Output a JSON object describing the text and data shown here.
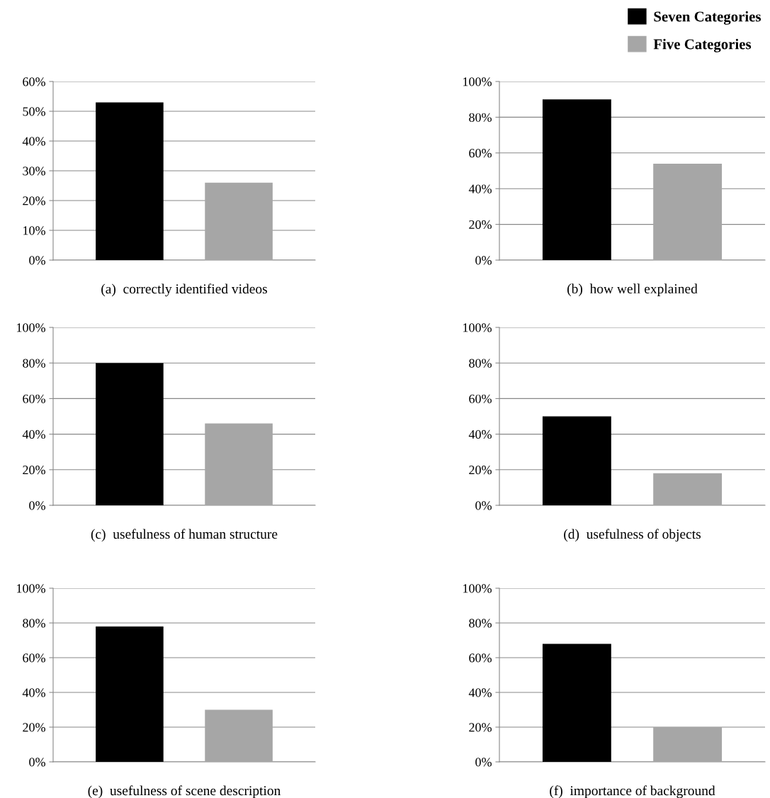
{
  "chart_data": [
    {
      "type": "bar",
      "title": "(a)  correctly identified videos",
      "categories": [
        null
      ],
      "series": [
        {
          "name": "Seven Categories",
          "color": "#000000",
          "values": [
            53
          ]
        },
        {
          "name": "Five Categories",
          "color": "#a6a6a6",
          "values": [
            26
          ]
        }
      ],
      "ylim": [
        0,
        60
      ],
      "yticks": [
        {
          "value": 0,
          "label": "0%"
        },
        {
          "value": 10,
          "label": "10%"
        },
        {
          "value": 20,
          "label": "20%"
        },
        {
          "value": 30,
          "label": "30%"
        },
        {
          "value": 40,
          "label": "40%"
        },
        {
          "value": 50,
          "label": "50%"
        },
        {
          "value": 60,
          "label": "60%"
        }
      ],
      "grid": "y",
      "tick_labels": "y",
      "legend": "top right"
    },
    {
      "type": "bar",
      "title": "(b)  how well explained",
      "categories": [
        null
      ],
      "series": [
        {
          "color": "#000000",
          "values": [
            90
          ]
        },
        {
          "color": "#a6a6a6",
          "values": [
            54
          ]
        }
      ],
      "ylim": [
        0,
        100
      ],
      "yticks": [
        {
          "value": 0,
          "label": "0%"
        },
        {
          "value": 20,
          "label": "20%"
        },
        {
          "value": 40,
          "label": "40%"
        },
        {
          "value": 60,
          "label": "60%"
        },
        {
          "value": 80,
          "label": "80%"
        },
        {
          "value": 100,
          "label": "100%"
        }
      ],
      "grid": "y",
      "tick_labels": "y"
    },
    {
      "type": "bar",
      "title": "(c)  usefulness of human structure",
      "categories": [
        null
      ],
      "series": [
        {
          "color": "#000000",
          "values": [
            80
          ]
        },
        {
          "color": "#a6a6a6",
          "values": [
            46
          ]
        }
      ],
      "ylim": [
        0,
        100
      ],
      "yticks": [
        {
          "value": 0,
          "label": "0%"
        },
        {
          "value": 20,
          "label": "20%"
        },
        {
          "value": 40,
          "label": "40%"
        },
        {
          "value": 60,
          "label": "60%"
        },
        {
          "value": 80,
          "label": "80%"
        },
        {
          "value": 100,
          "label": "100%"
        }
      ],
      "grid": "y",
      "tick_labels": "y"
    },
    {
      "type": "bar",
      "title": "(d)  usefulness of objects",
      "categories": [
        null
      ],
      "series": [
        {
          "color": "#000000",
          "values": [
            50
          ]
        },
        {
          "color": "#a6a6a6",
          "values": [
            18
          ]
        }
      ],
      "ylim": [
        0,
        100
      ],
      "yticks": [
        {
          "value": 0,
          "label": "0%"
        },
        {
          "value": 20,
          "label": "20%"
        },
        {
          "value": 40,
          "label": "40%"
        },
        {
          "value": 60,
          "label": "60%"
        },
        {
          "value": 80,
          "label": "80%"
        },
        {
          "value": 100,
          "label": "100%"
        }
      ],
      "grid": "y",
      "tick_labels": "y"
    },
    {
      "type": "bar",
      "title": "(e)  usefulness of scene description",
      "categories": [
        null
      ],
      "series": [
        {
          "color": "#000000",
          "values": [
            78
          ]
        },
        {
          "color": "#a6a6a6",
          "values": [
            30
          ]
        }
      ],
      "ylim": [
        0,
        100
      ],
      "yticks": [
        {
          "value": 0,
          "label": "0%"
        },
        {
          "value": 20,
          "label": "20%"
        },
        {
          "value": 40,
          "label": "40%"
        },
        {
          "value": 60,
          "label": "60%"
        },
        {
          "value": 80,
          "label": "80%"
        },
        {
          "value": 100,
          "label": "100%"
        }
      ],
      "grid": "y",
      "tick_labels": "y"
    },
    {
      "type": "bar",
      "title": "(f)  importance of background",
      "categories": [
        null
      ],
      "series": [
        {
          "color": "#000000",
          "values": [
            68
          ]
        },
        {
          "color": "#a6a6a6",
          "values": [
            20
          ]
        }
      ],
      "ylim": [
        0,
        100
      ],
      "yticks": [
        {
          "value": 0,
          "label": "0%"
        },
        {
          "value": 20,
          "label": "20%"
        },
        {
          "value": 40,
          "label": "40%"
        },
        {
          "value": 60,
          "label": "60%"
        },
        {
          "value": 80,
          "label": "80%"
        },
        {
          "value": 100,
          "label": "100%"
        }
      ],
      "grid": "y",
      "tick_labels": "y"
    }
  ]
}
